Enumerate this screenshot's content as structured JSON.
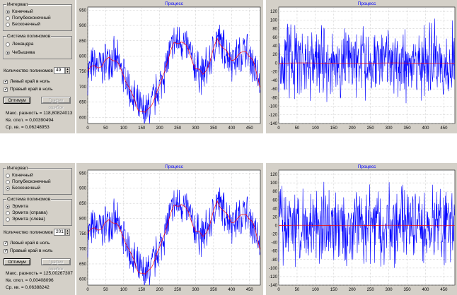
{
  "colors": {
    "signal": "#0000ff",
    "fit": "#ff0000",
    "grid": "#b0b0b0",
    "panel": "#d4d0c8"
  },
  "rows": [
    {
      "interval": {
        "title": "Интервал",
        "options": [
          "Конечный",
          "Полубесконечный",
          "Бесконечный"
        ],
        "selected": 0
      },
      "poly": {
        "title": "Система полиномов",
        "options": [
          "Лежандра",
          "Чебышева"
        ],
        "selected": 1
      },
      "count_label": "Количество полиномов",
      "count_value": "49",
      "left_zero": "Левый край в ноль",
      "right_zero": "Правый край в ноль",
      "left_checked": true,
      "right_checked": true,
      "optimum_button": "Оптимум",
      "errgraph_button": "График ошибок",
      "max_diff": "Макс. разность = 118,80824013",
      "sq_dev": "Кв. откл. = 0,00390494",
      "rms": "Ср. кв. = 0,06248953"
    },
    {
      "interval": {
        "title": "Интервал",
        "options": [
          "Конечный",
          "Полубесконечный",
          "Бесконечный"
        ],
        "selected": 2
      },
      "poly": {
        "title": "Система полиномов",
        "options": [
          "Эрмита",
          "Эрмита (справа)",
          "Эрмита (слева)"
        ],
        "selected": 0
      },
      "count_label": "Количество полиномов",
      "count_value": "201",
      "left_zero": "Левый край в ноль",
      "right_zero": "Правый край в ноль",
      "left_checked": true,
      "right_checked": true,
      "optimum_button": "Оптимум",
      "errgraph_button": "График ошибок",
      "max_diff": "Макс. разность = 125,00267307",
      "sq_dev": "Кв. откл. = 0,00408096",
      "rms": "Ср. кв. = 0,06388242"
    }
  ],
  "chart_data": [
    {
      "type": "line",
      "title": "Процесс",
      "xlim": [
        0,
        480
      ],
      "ylim": [
        580,
        960
      ],
      "xticks": [
        0,
        50,
        100,
        150,
        200,
        250,
        300,
        350,
        400,
        450
      ],
      "yticks": [
        600,
        650,
        700,
        750,
        800,
        850,
        900,
        950
      ],
      "grid": true,
      "anchors_x": [
        0,
        20,
        40,
        60,
        80,
        100,
        120,
        140,
        160,
        180,
        200,
        220,
        240,
        260,
        280,
        300,
        320,
        340,
        360,
        380,
        400,
        420,
        440,
        460,
        480
      ],
      "anchors_y": [
        750,
        770,
        765,
        800,
        780,
        740,
        680,
        630,
        610,
        650,
        700,
        780,
        840,
        850,
        820,
        760,
        740,
        780,
        860,
        820,
        790,
        800,
        820,
        780,
        700
      ],
      "fit_order": 49,
      "noise_amp": 55,
      "seed": 7
    },
    {
      "type": "line",
      "title": "Процесс",
      "xlim": [
        0,
        480
      ],
      "ylim": [
        -140,
        130
      ],
      "xticks": [
        0,
        50,
        100,
        150,
        200,
        250,
        300,
        350,
        400,
        450
      ],
      "yticks": [
        -140,
        -120,
        -100,
        -80,
        -60,
        -40,
        -20,
        0,
        20,
        40,
        60,
        80,
        100,
        120
      ],
      "grid": true,
      "residual": true,
      "noise_amp": 70,
      "seed": 11
    },
    {
      "type": "line",
      "title": "Процесс",
      "xlim": [
        0,
        480
      ],
      "ylim": [
        580,
        960
      ],
      "xticks": [
        0,
        50,
        100,
        150,
        200,
        250,
        300,
        350,
        400,
        450
      ],
      "yticks": [
        600,
        650,
        700,
        750,
        800,
        850,
        900,
        950
      ],
      "grid": true,
      "anchors_x": [
        0,
        20,
        40,
        60,
        80,
        100,
        120,
        140,
        160,
        180,
        200,
        220,
        240,
        260,
        280,
        300,
        320,
        340,
        360,
        380,
        400,
        420,
        440,
        460,
        480
      ],
      "anchors_y": [
        750,
        770,
        765,
        800,
        780,
        740,
        680,
        630,
        610,
        650,
        700,
        780,
        840,
        850,
        820,
        760,
        740,
        780,
        860,
        820,
        790,
        800,
        820,
        780,
        700
      ],
      "fit_order": 201,
      "noise_amp": 55,
      "seed": 7
    },
    {
      "type": "line",
      "title": "Процесс",
      "xlim": [
        0,
        480
      ],
      "ylim": [
        -140,
        130
      ],
      "xticks": [
        0,
        50,
        100,
        150,
        200,
        250,
        300,
        350,
        400,
        450
      ],
      "yticks": [
        -140,
        -120,
        -100,
        -80,
        -60,
        -40,
        -20,
        0,
        20,
        40,
        60,
        80,
        100,
        120
      ],
      "grid": true,
      "residual": true,
      "noise_amp": 70,
      "seed": 13
    }
  ]
}
